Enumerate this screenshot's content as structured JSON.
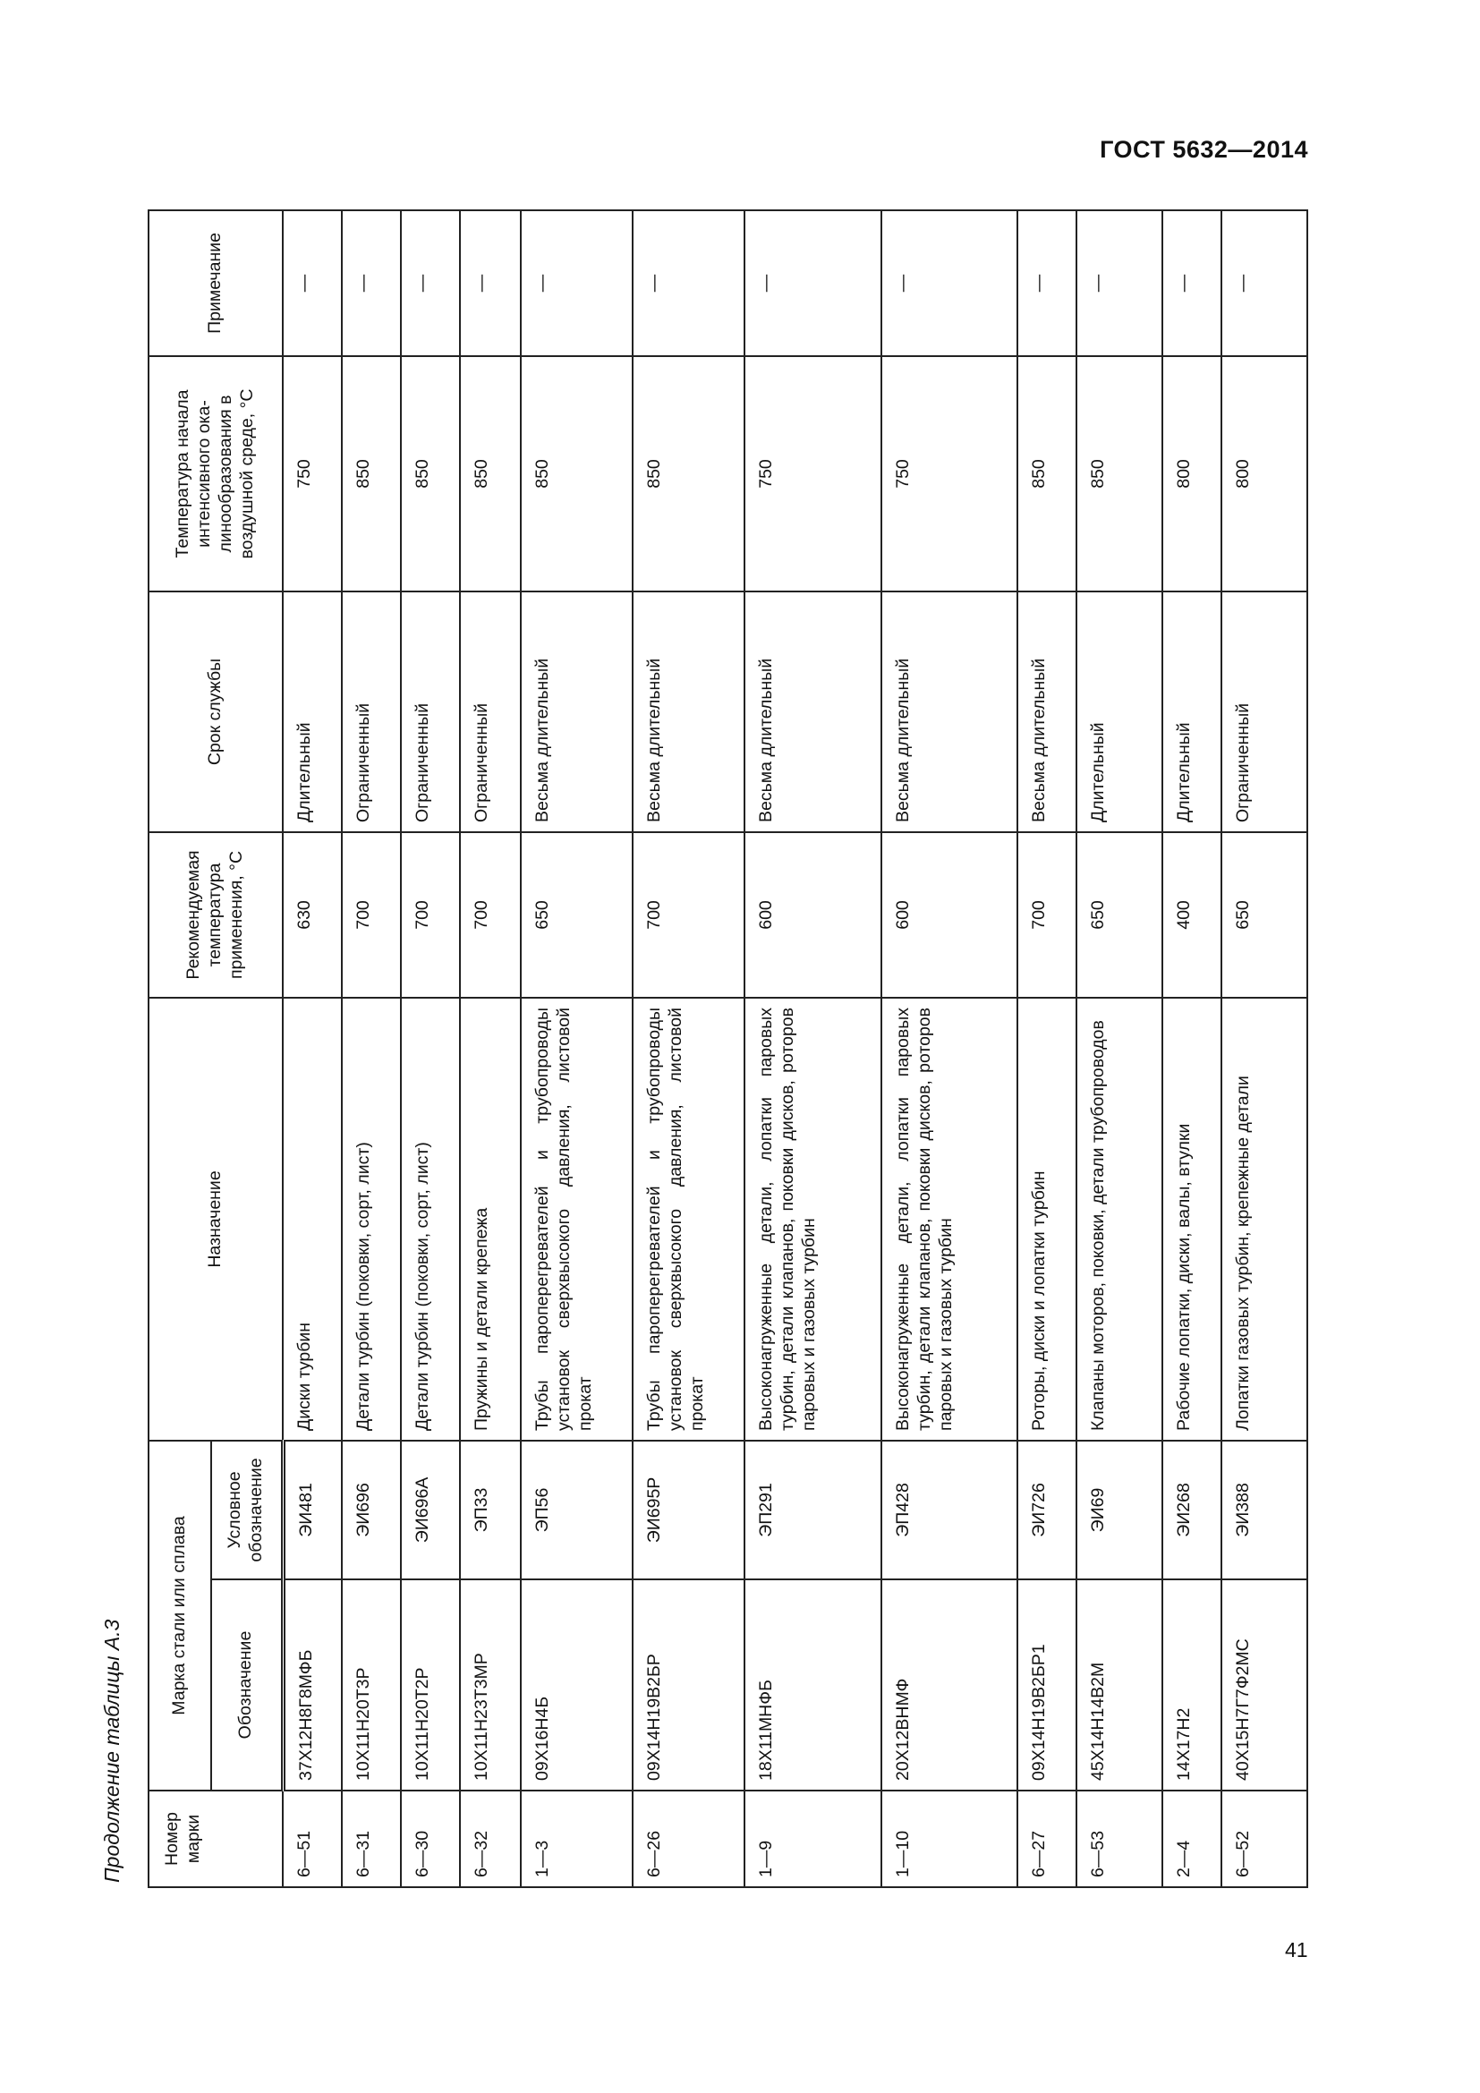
{
  "header": {
    "doc_code": "ГОСТ 5632—2014"
  },
  "caption": "Продолжение таблицы А.3",
  "page_number": "41",
  "table": {
    "columns": {
      "number": "Номер марки",
      "grade_group": "Марка стали или сплава",
      "designation": "Обозначение",
      "conventional": "Условное обозначение",
      "purpose": "Назначение",
      "rec_temp": "Рекомендуемая температура применения, °С",
      "service_life": "Срок службы",
      "scale_temp": "Температура начала интенсивного ока-линообразования в воздушной среде, °С",
      "note": "Примечание"
    },
    "rows": [
      {
        "number": "6—51",
        "designation": "37Х12Н8Г8МФБ",
        "conventional": "ЭИ481",
        "purpose": "Диски турбин",
        "rec_temp": "630",
        "service_life": "Длительный",
        "scale_temp": "750",
        "note": "—"
      },
      {
        "number": "6—31",
        "designation": "10Х11Н20Т3Р",
        "conventional": "ЭИ696",
        "purpose": "Детали турбин (поковки, сорт, лист)",
        "rec_temp": "700",
        "service_life": "Ограниченный",
        "scale_temp": "850",
        "note": "—"
      },
      {
        "number": "6—30",
        "designation": "10Х11Н20Т2Р",
        "conventional": "ЭИ696А",
        "purpose": "Детали турбин (поковки, сорт, лист)",
        "rec_temp": "700",
        "service_life": "Ограниченный",
        "scale_temp": "850",
        "note": "—"
      },
      {
        "number": "6—32",
        "designation": "10Х11Н23Т3МР",
        "conventional": "ЭП33",
        "purpose": "Пружины и детали крепежа",
        "rec_temp": "700",
        "service_life": "Ограниченный",
        "scale_temp": "850",
        "note": "—"
      },
      {
        "number": "1—3",
        "designation": "09Х16Н4Б",
        "conventional": "ЭП56",
        "purpose": "Трубы пароперегревателей и трубопроводы установок сверхвысокого давления, листовой прокат",
        "rec_temp": "650",
        "service_life": "Весьма длительный",
        "scale_temp": "850",
        "note": "—"
      },
      {
        "number": "6—26",
        "designation": "09Х14Н19В2БР",
        "conventional": "ЭИ695Р",
        "purpose": "Трубы пароперегревателей и трубопроводы установок сверхвысокого давления, листовой прокат",
        "rec_temp": "700",
        "service_life": "Весьма длительный",
        "scale_temp": "850",
        "note": "—"
      },
      {
        "number": "1—9",
        "designation": "18Х11МНФБ",
        "conventional": "ЭП291",
        "purpose": "Высоконагруженные детали, лопатки паровых турбин, детали клапанов, поковки дисков, роторов паровых и газовых турбин",
        "rec_temp": "600",
        "service_life": "Весьма длительный",
        "scale_temp": "750",
        "note": "—"
      },
      {
        "number": "1—10",
        "designation": "20Х12ВНМФ",
        "conventional": "ЭП428",
        "purpose": "Высоконагруженные детали, лопатки паровых турбин, детали клапанов, поковки дисков, роторов паровых и газовых турбин",
        "rec_temp": "600",
        "service_life": "Весьма длительный",
        "scale_temp": "750",
        "note": "—"
      },
      {
        "number": "6—27",
        "designation": "09Х14Н19В2БР1",
        "conventional": "ЭИ726",
        "purpose": "Роторы, диски и лопатки турбин",
        "rec_temp": "700",
        "service_life": "Весьма длительный",
        "scale_temp": "850",
        "note": "—"
      },
      {
        "number": "6—53",
        "designation": "45Х14Н14В2М",
        "conventional": "ЭИ69",
        "purpose": "Клапаны моторов, поковки, детали трубопроводов",
        "rec_temp": "650",
        "service_life": "Длительный",
        "scale_temp": "850",
        "note": "—"
      },
      {
        "number": "2—4",
        "designation": "14Х17Н2",
        "conventional": "ЭИ268",
        "purpose": "Рабочие лопатки, диски, валы, втулки",
        "rec_temp": "400",
        "service_life": "Длительный",
        "scale_temp": "800",
        "note": "—"
      },
      {
        "number": "6—52",
        "designation": "40Х15Н7Г7Ф2МС",
        "conventional": "ЭИ388",
        "purpose": "Лопатки газовых турбин, крепежные детали",
        "rec_temp": "650",
        "service_life": "Ограниченный",
        "scale_temp": "800",
        "note": "—"
      }
    ]
  }
}
